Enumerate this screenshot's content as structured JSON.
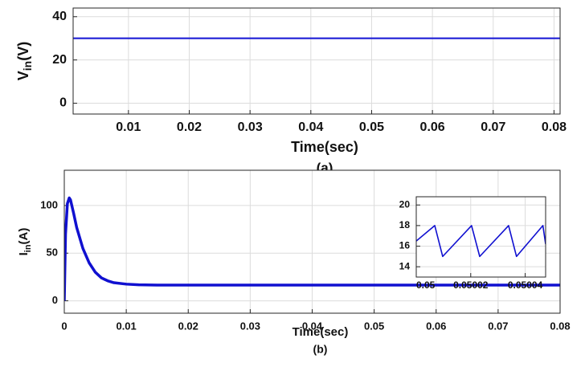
{
  "chart_data": [
    {
      "type": "line",
      "caption": "(a)",
      "xlabel": "Time(sec)",
      "ylabel": [
        "V",
        "in",
        "(V)"
      ],
      "xlim": [
        0.0009,
        0.081
      ],
      "ylim": [
        -5,
        44
      ],
      "xticks": [
        0.01,
        0.02,
        0.03,
        0.04,
        0.05,
        0.06,
        0.07,
        0.08
      ],
      "yticks": [
        0,
        20,
        40
      ],
      "grid": true,
      "x": [
        0.0009,
        0.081
      ],
      "series": [
        {
          "color": "#1f1fd6",
          "values": [
            30,
            30
          ]
        }
      ]
    },
    {
      "type": "line",
      "caption": "(b)",
      "xlabel": "Time(sec)",
      "ylabel": [
        "I",
        "in",
        "(A)"
      ],
      "xlim": [
        0,
        0.08
      ],
      "ylim": [
        -13,
        137
      ],
      "xticks": [
        0,
        0.01,
        0.02,
        0.03,
        0.04,
        0.05,
        0.06,
        0.07,
        0.08
      ],
      "yticks": [
        0,
        50,
        100
      ],
      "grid": true,
      "x": [
        0,
        0.0002,
        0.0005,
        0.0008,
        0.001,
        0.0015,
        0.002,
        0.003,
        0.004,
        0.005,
        0.006,
        0.007,
        0.008,
        0.01,
        0.012,
        0.015,
        0.02,
        0.03,
        0.04,
        0.05,
        0.06,
        0.07,
        0.08
      ],
      "series": [
        {
          "color": "#1010d0",
          "values": [
            0,
            70,
            102,
            108,
            106,
            92,
            77,
            55,
            40,
            30,
            24,
            21,
            19,
            17.5,
            16.8,
            16.5,
            16.5,
            16.5,
            16.5,
            16.5,
            16.5,
            16.5,
            16.5
          ]
        }
      ]
    },
    {
      "type": "line",
      "xlim": [
        0.05,
        0.0500475
      ],
      "ylim": [
        13,
        20.8
      ],
      "xticks": [
        0.05,
        0.05002,
        0.05004
      ],
      "yticks": [
        14,
        16,
        18,
        20
      ],
      "grid": true,
      "x": [
        0.05,
        0.0500068,
        0.0500097,
        0.0500203,
        0.0500233,
        0.0500339,
        0.0500368,
        0.0500465,
        0.0500475
      ],
      "series": [
        {
          "color": "#1010d0",
          "values": [
            16.5,
            18,
            15,
            18,
            15,
            18,
            15,
            18,
            16.2
          ]
        }
      ]
    }
  ]
}
